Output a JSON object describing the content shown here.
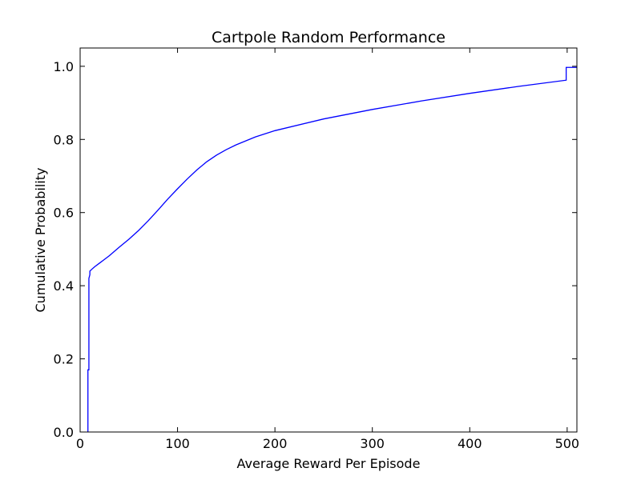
{
  "chart_data": {
    "type": "line",
    "title": "Cartpole Random Performance",
    "xlabel": "Average Reward Per Episode",
    "ylabel": "Cumulative Probability",
    "xlim": [
      0,
      510
    ],
    "ylim": [
      0,
      1.05
    ],
    "xticks": [
      0,
      100,
      200,
      300,
      400,
      500
    ],
    "xtick_labels": [
      "0",
      "100",
      "200",
      "300",
      "400",
      "500"
    ],
    "yticks": [
      0.0,
      0.2,
      0.4,
      0.6,
      0.8,
      1.0
    ],
    "ytick_labels": [
      "0.0",
      "0.2",
      "0.4",
      "0.6",
      "0.8",
      "1.0"
    ],
    "grid": false,
    "series": [
      {
        "color": "#0000ff",
        "x": [
          8,
          8,
          9,
          9,
          10,
          10,
          12,
          15,
          20,
          25,
          30,
          40,
          50,
          60,
          70,
          80,
          90,
          100,
          110,
          120,
          130,
          140,
          150,
          160,
          180,
          200,
          250,
          300,
          350,
          400,
          450,
          499,
          499,
          510
        ],
        "y": [
          0.0,
          0.17,
          0.17,
          0.42,
          0.43,
          0.44,
          0.445,
          0.452,
          0.462,
          0.472,
          0.482,
          0.505,
          0.527,
          0.551,
          0.578,
          0.607,
          0.637,
          0.665,
          0.692,
          0.717,
          0.739,
          0.757,
          0.772,
          0.785,
          0.807,
          0.824,
          0.856,
          0.882,
          0.905,
          0.926,
          0.945,
          0.962,
          0.997,
          0.997
        ]
      }
    ]
  }
}
